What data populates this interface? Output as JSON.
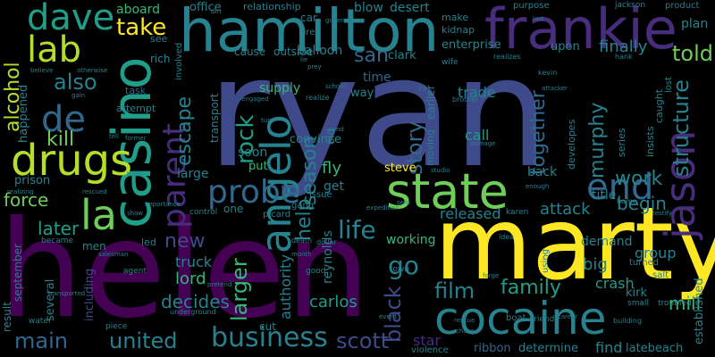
{
  "words": {
    "ryan": "ryan",
    "helen": "helen",
    "marty": "marty",
    "hamilton": "hamilton",
    "frankie": "frankie",
    "casino": "casino",
    "state": "state",
    "cocaine": "cocaine",
    "jason": "jason",
    "drugs": "drugs",
    "angelo": "angelo",
    "dave": "dave",
    "lab": "lab",
    "parent": "parent",
    "end": "end",
    "la": "la",
    "de": "de",
    "probe": "probe",
    "business": "business",
    "united": "united",
    "main": "main",
    "scott": "scott",
    "life": "life",
    "film": "film",
    "family": "family",
    "take": "take",
    "also": "also",
    "alcohol": "alcohol",
    "kill": "kill",
    "san": "san",
    "escape": "escape",
    "told": "told",
    "structure": "structure",
    "rock": "rock",
    "season": "season",
    "story": "story",
    "together": "together",
    "murphy": "murphy",
    "work": "work",
    "begin": "begin",
    "attack": "attack",
    "later": "later",
    "force": "force",
    "new": "new",
    "larger": "larger",
    "decides": "decides",
    "lord": "lord",
    "truck": "truck",
    "help": "help",
    "black": "black",
    "go": "go",
    "carlos": "carlos",
    "crash": "crash",
    "big": "big",
    "group": "group",
    "mill": "mill",
    "finally": "finally",
    "trade": "trade",
    "call": "call",
    "fly": "fly",
    "get": "get",
    "released": "released",
    "working": "working",
    "authority": "authority",
    "reynolds": "reynolds",
    "determine": "determine",
    "find": "find",
    "latebeach": "latebeach",
    "ribbon": "ribbon",
    "star": "star",
    "violence": "violence",
    "supply": "supply",
    "time": "time",
    "way": "way",
    "blow": "blow",
    "desert": "desert",
    "balloon": "balloon",
    "relationship": "relationship",
    "office": "office",
    "aboard": "aboard",
    "enterprise": "enterprise",
    "clark": "clark",
    "make": "make",
    "upon": "upon",
    "steve": "steve",
    "back": "back",
    "title": "title",
    "demand": "demand",
    "kirk": "kirk",
    "several": "several",
    "including": "including",
    "men": "men",
    "led": "led",
    "put": "put",
    "soon": "soon",
    "convince": "convince",
    "large": "large",
    "one": "one",
    "happened": "happened",
    "prison": "prison",
    "result": "result",
    "september": "september",
    "established": "established",
    "plan": "plan",
    "product": "product",
    "purpose": "purpose",
    "jackson": "jackson",
    "kidnap": "kidnap",
    "wife": "wife",
    "outside": "outside",
    "cause": "cause",
    "rich": "rich",
    "see": "see",
    "car": "car",
    "fire": "fire",
    "involved": "involved",
    "attempt": "attempt",
    "task": "task",
    "transport": "transport",
    "old": "old",
    "earlier": "earlier",
    "moving": "moving",
    "developes": "developes",
    "series": "series",
    "insists": "insists",
    "caught": "caught",
    "lost": "lost",
    "gang": "gang",
    "issue": "issue",
    "picard": "picard",
    "control": "control",
    "became": "became",
    "agent": "agent",
    "good": "good",
    "town": "town",
    "salt": "salt",
    "turned": "turned",
    "boat": "boat",
    "friend": "friend",
    "small": "small",
    "troubled": "troubled",
    "using": "using",
    "idea": "idea",
    "dollar": "dollar",
    "death": "death",
    "piece": "piece",
    "water": "water",
    "cut": "cut",
    "underground": "underground",
    "hank": "hank",
    "realizes": "realizes",
    "otherwise": "otherwise",
    "believe": "believe",
    "gain": "gain",
    "former": "former",
    "truth": "truth",
    "brother": "brother",
    "damage": "damage",
    "studio": "studio",
    "kevin": "kevin",
    "attacker": "attacker",
    "home": "home",
    "enough": "enough",
    "sent": "sent",
    "expedition": "expedition",
    "salesman": "salesman",
    "transported": "transported",
    "rescue": "rescue",
    "chase": "chase",
    "event": "event",
    "building": "building",
    "forge": "forge",
    "karen": "karen",
    "tell": "tell",
    "realize": "realize",
    "send": "send",
    "turn": "turn",
    "prey": "prey",
    "lie": "lie",
    "school": "school",
    "governor": "governor",
    "dirt": "dirt",
    "last": "last",
    "try": "try",
    "testify": "testify",
    "show": "show",
    "realizing": "realizing",
    "importance": "importance",
    "rescued": "rescued",
    "month": "month",
    "engaged": "engaged",
    "pretend": "pretend",
    "career": "career"
  }
}
